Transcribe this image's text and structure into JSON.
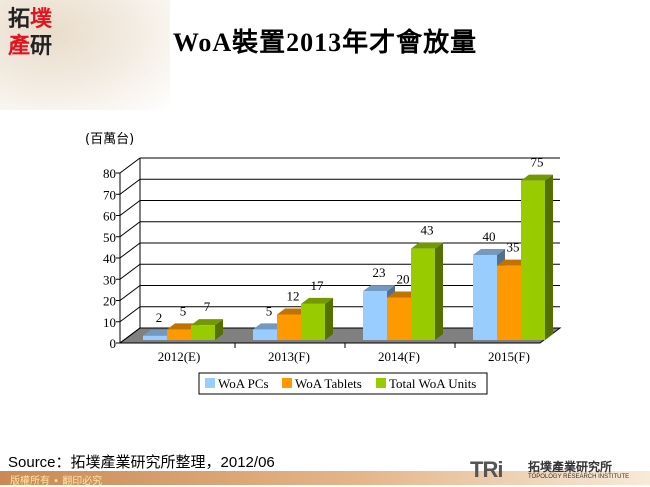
{
  "logo": {
    "text": [
      "拓",
      "墣",
      "產",
      "研"
    ]
  },
  "title": "WoA裝置2013年才會放量",
  "source": "Source：拓墣產業研究所整理，2012/06",
  "copyright": "版權所有 • 翻印必究",
  "footer_logo": {
    "mark": "TRi",
    "name_cn": "拓墣產業研究所",
    "name_en": "TOPOLOGY RESEARCH INSTITUTE"
  },
  "chart_data": {
    "type": "bar",
    "unit_label": "(百萬台)",
    "categories": [
      "2012(E)",
      "2013(F)",
      "2014(F)",
      "2015(F)"
    ],
    "series": [
      {
        "name": "WoA PCs",
        "values": [
          2,
          5,
          23,
          40
        ],
        "color": "#99ccff"
      },
      {
        "name": "WoA Tablets",
        "values": [
          5,
          12,
          20,
          35
        ],
        "color": "#ff9900"
      },
      {
        "name": "Total WoA Units",
        "values": [
          7,
          17,
          43,
          75
        ],
        "color": "#99cc00"
      }
    ],
    "ylim": [
      0,
      80
    ],
    "yticks": [
      "0",
      "10",
      "20",
      "30",
      "40",
      "50",
      "60",
      "70",
      "80"
    ],
    "grid": true,
    "legend": "bottom",
    "style": "3d-clustered-column"
  }
}
